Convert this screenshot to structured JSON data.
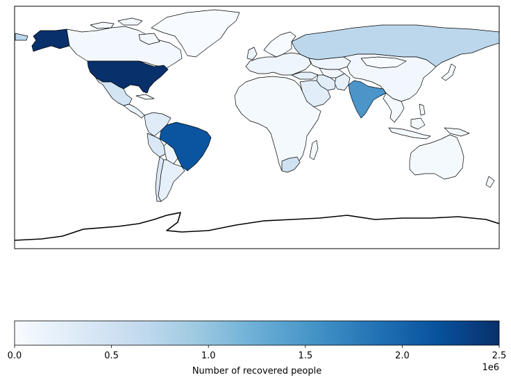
{
  "chart_data": {
    "type": "choropleth",
    "projection": "equirectangular",
    "colormap": "Blues",
    "colorbar": {
      "label": "Number of recovered people",
      "min": 0,
      "max": 2500000,
      "ticks": [
        {
          "value": 0,
          "label": "0.0"
        },
        {
          "value": 500000,
          "label": "0.5"
        },
        {
          "value": 1000000,
          "label": "1.0"
        },
        {
          "value": 1500000,
          "label": "1.5"
        },
        {
          "value": 2000000,
          "label": "2.0"
        },
        {
          "value": 2500000,
          "label": "2.5"
        }
      ],
      "offset_text": "1e6",
      "orientation": "horizontal",
      "placement": "bottom"
    },
    "regions": [
      {
        "name": "United States",
        "value": 2500000
      },
      {
        "name": "Brazil",
        "value": 2200000
      },
      {
        "name": "India",
        "value": 1350000
      },
      {
        "name": "Russia",
        "value": 700000
      },
      {
        "name": "South Africa",
        "value": 400000
      },
      {
        "name": "Mexico",
        "value": 350000
      },
      {
        "name": "Peru",
        "value": 300000
      },
      {
        "name": "Chile",
        "value": 300000
      },
      {
        "name": "Colombia",
        "value": 250000
      },
      {
        "name": "Argentina",
        "value": 200000
      },
      {
        "name": "Iran",
        "value": 250000
      },
      {
        "name": "Saudi Arabia",
        "value": 250000
      },
      {
        "name": "Pakistan",
        "value": 200000
      },
      {
        "name": "Turkey",
        "value": 200000
      },
      {
        "name": "Kazakhstan",
        "value": 100000
      },
      {
        "name": "China",
        "value": 80000
      },
      {
        "name": "Canada",
        "value": 100000
      },
      {
        "name": "Mauritania",
        "value": 5000
      }
    ]
  }
}
